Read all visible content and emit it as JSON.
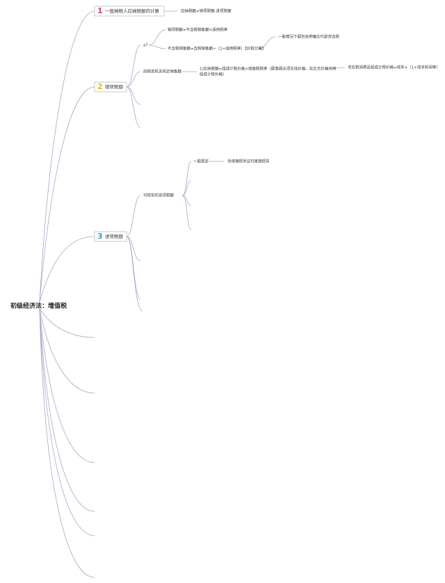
{
  "root": "初级经济法：增值税",
  "nodes": [
    {
      "number": "1",
      "label": "一般纳税人应纳税额的计算",
      "children": [
        {
          "label": "应纳税额=销项税额-进项税额"
        }
      ]
    },
    {
      "number": "2",
      "label": "销项税额",
      "children": [
        {
          "label": "a7",
          "children": [
            {
              "label": "销项税额=不含税销售额×适用税率"
            },
            {
              "label": "不含税销售额=含税销售额÷（1+适用税率）【价税分离】",
              "children": [
                {
                  "label": "一般情况下题目会明确交代是否含税"
                }
              ]
            }
          ]
        },
        {
          "label": "由税务机关核定销售额",
          "children": [
            {
              "label": [
                "1)应纳税额=组成计税价格×增值税税率（题意题必须先找价格，实在无价格可用",
                "组成计税价格）"
              ],
              "children": [
                {
                  "label": "非应税消费品组成计税价格=成本×（1+成本利润率）"
                }
              ]
            }
          ]
        }
      ]
    },
    {
      "number": "3",
      "label": "进项税额",
      "children": [
        {
          "label": "可抵扣的进项税额",
          "children": [
            {
              "label": "一般规定",
              "children": [
                {
                  "label": "凭增值税凭证可直接抵扣"
                }
              ]
            }
          ]
        }
      ]
    }
  ]
}
